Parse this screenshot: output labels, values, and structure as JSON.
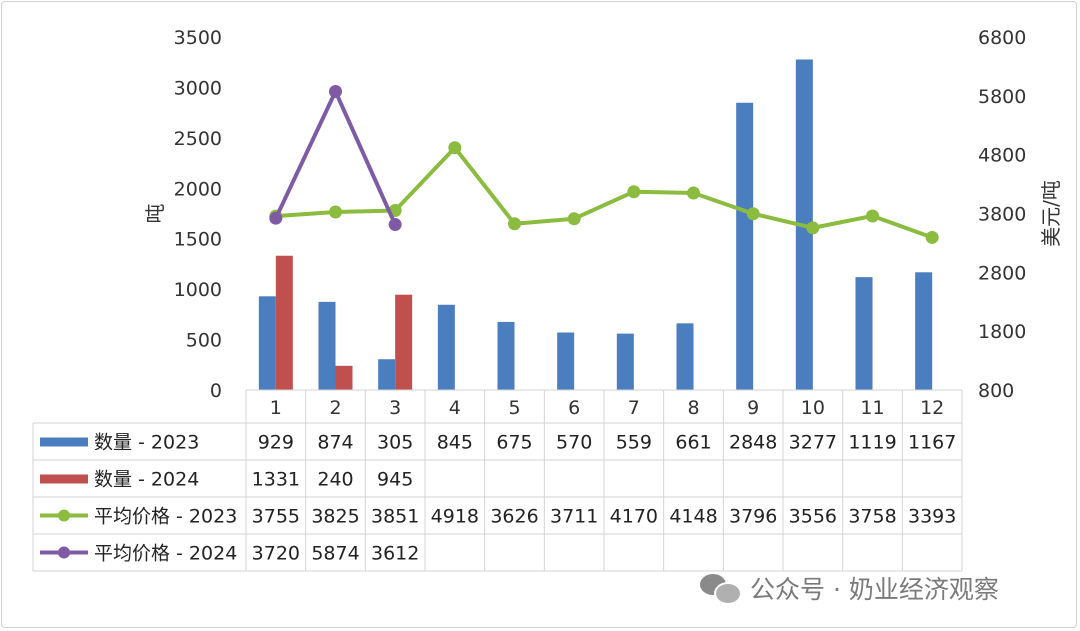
{
  "chart_data": {
    "type": "bar",
    "categories": [
      "1",
      "2",
      "3",
      "4",
      "5",
      "6",
      "7",
      "8",
      "9",
      "10",
      "11",
      "12"
    ],
    "y_left": {
      "label": "吨",
      "range": [
        0,
        3500
      ],
      "ticks": [
        0,
        500,
        1000,
        1500,
        2000,
        2500,
        3000,
        3500
      ]
    },
    "y_right": {
      "label": "美元/吨",
      "range": [
        800,
        6800
      ],
      "ticks": [
        800,
        1800,
        2800,
        3800,
        4800,
        5800,
        6800
      ]
    },
    "grid": false,
    "legend": "data-table-below",
    "series": [
      {
        "name": "数量 - 2023",
        "type": "bar",
        "axis": "left",
        "color": "#4a7ebf",
        "values": [
          929,
          874,
          305,
          845,
          675,
          570,
          559,
          661,
          2848,
          3277,
          1119,
          1167
        ]
      },
      {
        "name": "数量 - 2024",
        "type": "bar",
        "axis": "left",
        "color": "#c0504d",
        "values": [
          1331,
          240,
          945,
          null,
          null,
          null,
          null,
          null,
          null,
          null,
          null,
          null
        ]
      },
      {
        "name": "平均价格 - 2023",
        "type": "line",
        "axis": "right",
        "color": "#8bbb3f",
        "values": [
          3755,
          3825,
          3851,
          4918,
          3626,
          3711,
          4170,
          4148,
          3796,
          3556,
          3758,
          3393
        ]
      },
      {
        "name": "平均价格 - 2024",
        "type": "line",
        "axis": "right",
        "color": "#7f5ba6",
        "values": [
          3720,
          5874,
          3612,
          null,
          null,
          null,
          null,
          null,
          null,
          null,
          null,
          null
        ]
      }
    ]
  },
  "watermark": {
    "text": "公众号 · 奶业经济观察",
    "icon": "wechat-icon"
  }
}
